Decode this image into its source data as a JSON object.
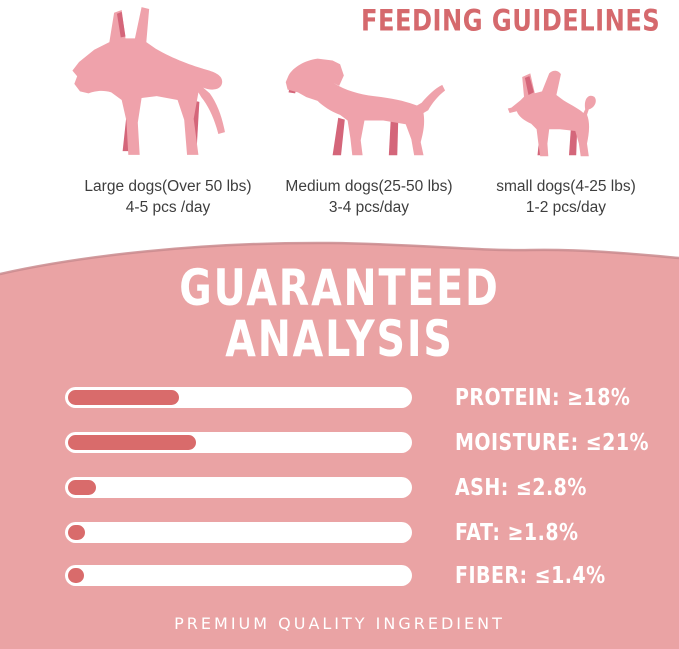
{
  "colors": {
    "accent_red": "#d5696d",
    "bar_fill": "#d96b6b",
    "bar_track": "#ffffff",
    "section_bg": "#eaa3a4",
    "section_edge_stroke": "#c98b8e",
    "dog_pink": "#efa2ab",
    "dog_accent": "#d4667a",
    "caption_text": "#3e3e3e",
    "heading_white": "#ffffff"
  },
  "header": {
    "title": "FEEDING GUIDELINES"
  },
  "feeding": {
    "items": [
      {
        "icon": "large-dog-icon",
        "line1": "Large dogs(Over 50 lbs)",
        "line2": "4-5 pcs /day"
      },
      {
        "icon": "medium-dog-icon",
        "line1": "Medium dogs(25-50 lbs)",
        "line2": "3-4 pcs/day"
      },
      {
        "icon": "small-dog-icon",
        "line1": "small dogs(4-25 lbs)",
        "line2": "1-2 pcs/day"
      }
    ]
  },
  "analysis": {
    "heading_line1": "GUARANTEED",
    "heading_line2": "ANALYSIS",
    "rows": [
      {
        "label": "PROTEIN: ≥18%",
        "fill_pct": 32
      },
      {
        "label": "MOISTURE: ≤21%",
        "fill_pct": 37
      },
      {
        "label": "ASH: ≤2.8%",
        "fill_pct": 8
      },
      {
        "label": "FAT: ≥1.8%",
        "fill_pct": 5
      },
      {
        "label": "FIBER: ≤1.4%",
        "fill_pct": 4.5
      }
    ],
    "footer": "PREMIUM QUALITY INGREDIENT"
  },
  "chart_data": {
    "type": "bar",
    "orientation": "horizontal",
    "title": "GUARANTEED ANALYSIS",
    "categories": [
      "PROTEIN",
      "MOISTURE",
      "ASH",
      "FAT",
      "FIBER"
    ],
    "values": [
      18,
      21,
      2.8,
      1.8,
      1.4
    ],
    "comparators": [
      "≥",
      "≤",
      "≤",
      "≥",
      "≤"
    ],
    "unit": "%",
    "bar_fill_fraction_of_track": [
      0.32,
      0.37,
      0.08,
      0.05,
      0.045
    ],
    "legend": false,
    "grid": false
  }
}
